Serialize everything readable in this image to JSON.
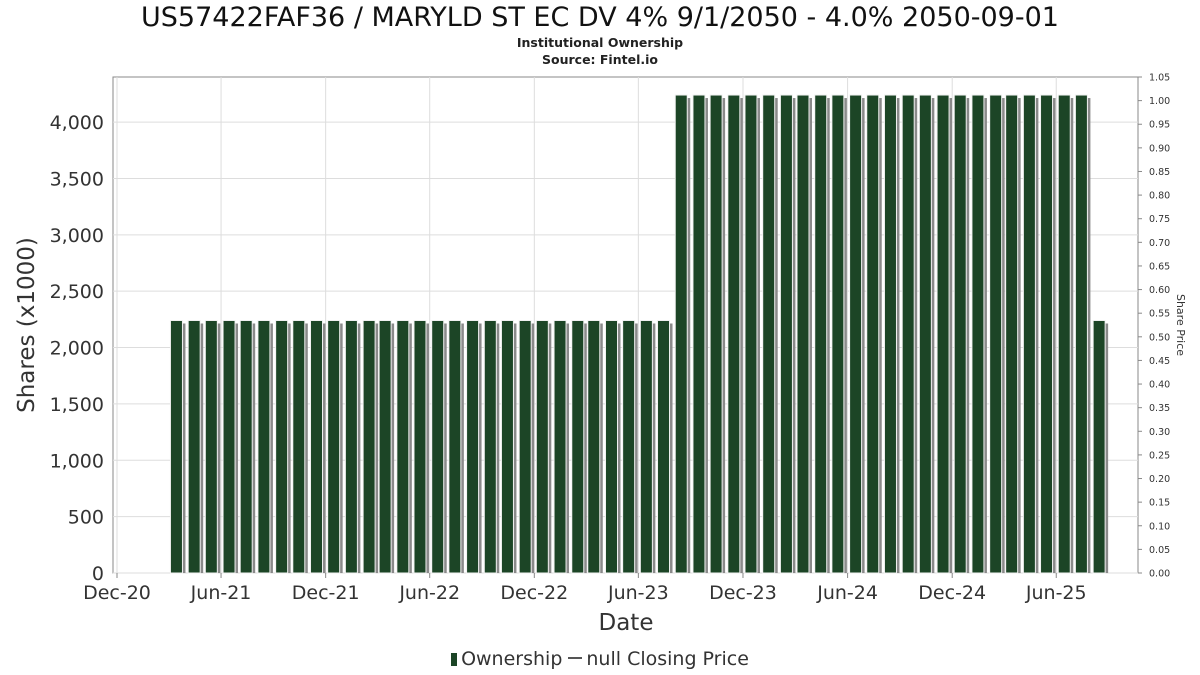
{
  "header": {
    "title": "US57422FAF36 / MARYLD ST EC DV 4% 9/1/2050 - 4.0% 2050-09-01",
    "subtitle_1": "Institutional Ownership",
    "subtitle_2": "Source: Fintel.io"
  },
  "legend": {
    "ownership_label": "Ownership",
    "closing_price_label": "null Closing Price"
  },
  "colors": {
    "bar": "#1c4526",
    "bar_shadow": "#8a8a8a",
    "grid": "#dddddd",
    "axis": "#888888"
  },
  "chart_data": {
    "type": "bar",
    "xlabel": "Date",
    "ylabel": "Shares (x1000)",
    "y2label": "Share Price",
    "ylim": [
      0,
      4400
    ],
    "y2lim": [
      0,
      1.05
    ],
    "xlim": [
      "2020-12-01",
      "2025-10-15"
    ],
    "grid": true,
    "legend_position": "bottom",
    "x_tick_labels": [
      "Dec-20",
      "Jun-21",
      "Dec-21",
      "Jun-22",
      "Dec-22",
      "Jun-23",
      "Dec-23",
      "Jun-24",
      "Dec-24",
      "Jun-25"
    ],
    "x_tick_dates": [
      "2020-12-01",
      "2021-06-01",
      "2021-12-01",
      "2022-06-01",
      "2022-12-01",
      "2023-06-01",
      "2023-12-01",
      "2024-06-01",
      "2024-12-01",
      "2025-06-01"
    ],
    "y_tick_labels": [
      "0",
      "500",
      "1,000",
      "1,500",
      "2,000",
      "2,500",
      "3,000",
      "3,500",
      "4,000"
    ],
    "y_tick_values": [
      0,
      500,
      1000,
      1500,
      2000,
      2500,
      3000,
      3500,
      4000
    ],
    "y2_tick_labels": [
      "0.00",
      "0.05",
      "0.10",
      "0.15",
      "0.20",
      "0.25",
      "0.30",
      "0.35",
      "0.40",
      "0.45",
      "0.50",
      "0.55",
      "0.60",
      "0.65",
      "0.70",
      "0.75",
      "0.80",
      "0.85",
      "0.90",
      "0.95",
      "1.00",
      "1.05"
    ],
    "series": [
      {
        "name": "Ownership",
        "x": [
          "2021-03-15",
          "2021-04-15",
          "2021-05-15",
          "2021-06-15",
          "2021-07-15",
          "2021-08-15",
          "2021-09-15",
          "2021-10-15",
          "2021-11-15",
          "2021-12-15",
          "2022-01-15",
          "2022-02-15",
          "2022-03-15",
          "2022-04-15",
          "2022-05-15",
          "2022-06-15",
          "2022-07-15",
          "2022-08-15",
          "2022-09-15",
          "2022-10-15",
          "2022-11-15",
          "2022-12-15",
          "2023-01-15",
          "2023-02-15",
          "2023-03-15",
          "2023-04-15",
          "2023-05-15",
          "2023-06-15",
          "2023-07-15",
          "2023-08-15",
          "2023-09-15",
          "2023-10-15",
          "2023-11-15",
          "2023-12-15",
          "2024-01-15",
          "2024-02-15",
          "2024-03-15",
          "2024-04-15",
          "2024-05-15",
          "2024-06-15",
          "2024-07-15",
          "2024-08-15",
          "2024-09-15",
          "2024-10-15",
          "2024-11-15",
          "2024-12-15",
          "2025-01-15",
          "2025-02-15",
          "2025-03-15",
          "2025-04-15",
          "2025-05-15",
          "2025-06-15",
          "2025-07-15",
          "2025-08-15"
        ],
        "values": [
          2240,
          2240,
          2240,
          2240,
          2240,
          2240,
          2240,
          2240,
          2240,
          2240,
          2240,
          2240,
          2240,
          2240,
          2240,
          2240,
          2240,
          2240,
          2240,
          2240,
          2240,
          2240,
          2240,
          2240,
          2240,
          2240,
          2240,
          2240,
          2240,
          4240,
          4240,
          4240,
          4240,
          4240,
          4240,
          4240,
          4240,
          4240,
          4240,
          4240,
          4240,
          4240,
          4240,
          4240,
          4240,
          4240,
          4240,
          4240,
          4240,
          4240,
          4240,
          4240,
          4240,
          2240
        ]
      }
    ]
  }
}
